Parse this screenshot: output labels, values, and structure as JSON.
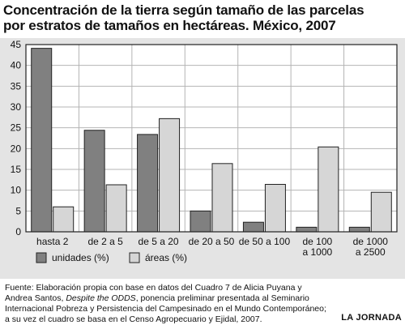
{
  "header": {
    "title_line1": "Concentración de la tierra según tamaño de las parcelas",
    "title_line2": "por estratos de tamaños en hectáreas. México, 2007"
  },
  "chart_data": {
    "type": "bar",
    "categories": [
      [
        "hasta 2"
      ],
      [
        "de 2 a 5"
      ],
      [
        "de 5 a 20"
      ],
      [
        "de 20 a 50"
      ],
      [
        "de 50 a 100"
      ],
      [
        "de 100",
        "a 1000"
      ],
      [
        "de 1000",
        "a 2500"
      ]
    ],
    "series": [
      {
        "name": "unidades (%)",
        "color": "#808080",
        "values": [
          44.1,
          24.4,
          23.4,
          5.0,
          2.3,
          1.1,
          1.1
        ]
      },
      {
        "name": "áreas (%)",
        "color": "#d6d6d6",
        "values": [
          6.0,
          11.3,
          27.2,
          16.4,
          11.4,
          20.4,
          9.5
        ]
      }
    ],
    "ylim": [
      0,
      45
    ],
    "yticks": [
      "0",
      "5",
      "10",
      "15",
      "20",
      "25",
      "30",
      "35",
      "40",
      "45"
    ],
    "grid": true,
    "legend_position": "bottom"
  },
  "footer": {
    "source_prefix": "Fuente: Elaboración propia con base en datos del Cuadro 7 de Alicia Puyana y Andrea Santos, ",
    "source_italic": "Despite the ODDS",
    "source_suffix": ", ponencia preliminar presentada al Seminario Internacional Pobreza y Persistencia del Campesinado en el Mundo Contemporáneo; a su vez el cuadro se basa en el Censo Agropecuario y Ejidal, 2007.",
    "brand": "LA JORNADA"
  }
}
